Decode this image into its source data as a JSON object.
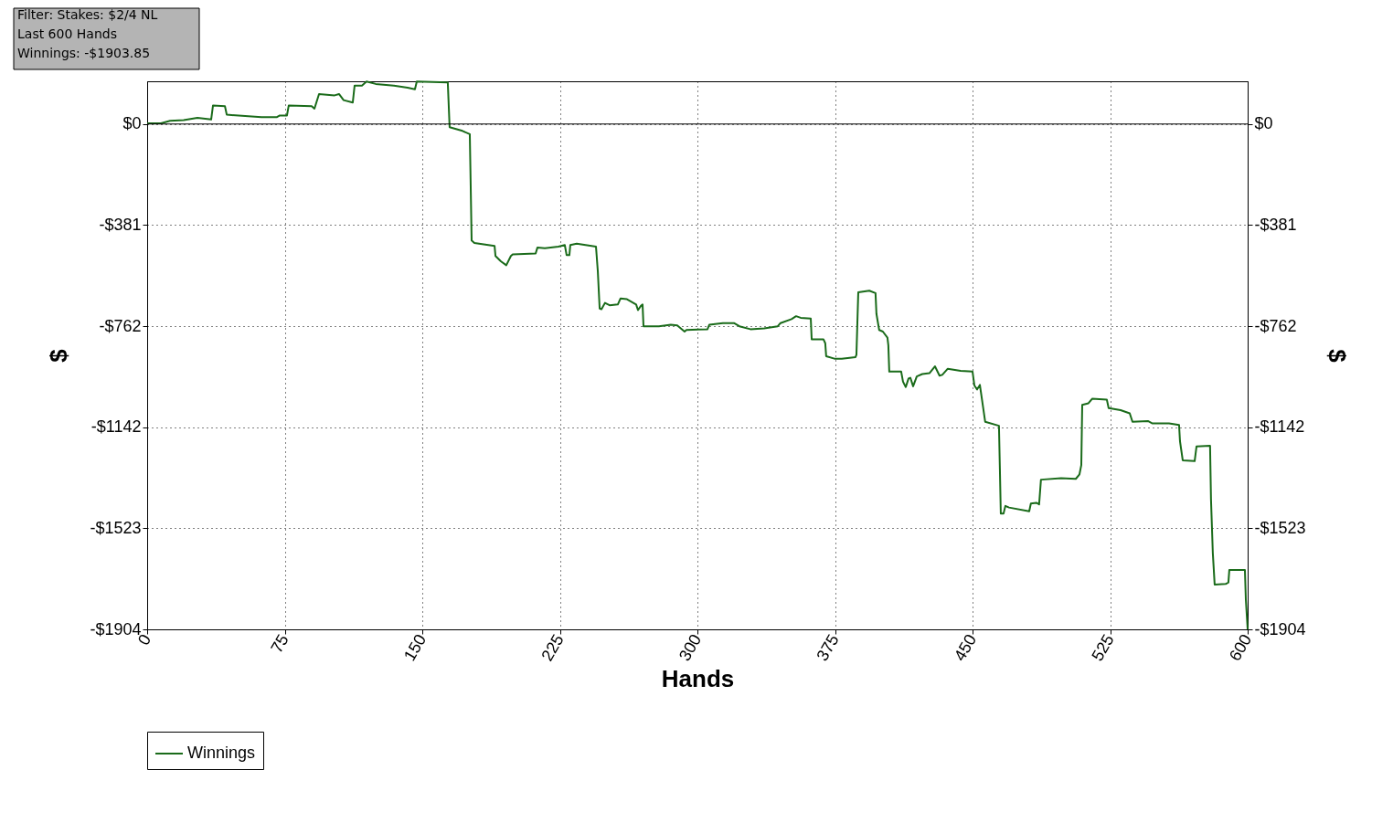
{
  "chart_data": {
    "type": "line",
    "xlabel": "Hands",
    "ylabel": "$",
    "y2label": "$",
    "annotations": [
      "Filter: Stakes: $2/4 NL",
      "Last 600 Hands",
      "Winnings: -$1903.85"
    ],
    "xlim": [
      0,
      600
    ],
    "xticks": [
      0,
      75,
      150,
      225,
      300,
      375,
      450,
      525,
      600
    ],
    "ylim": [
      -1904,
      161
    ],
    "yticks": [
      {
        "value": 0,
        "label": "$0"
      },
      {
        "value": -381,
        "label": "-$381"
      },
      {
        "value": -762,
        "label": "-$762"
      },
      {
        "value": -1142,
        "label": "-$1142"
      },
      {
        "value": -1523,
        "label": "-$1523"
      },
      {
        "value": -1904,
        "label": "-$1904"
      }
    ],
    "y2lim": [
      -1904,
      161
    ],
    "y2ticks": [
      {
        "value": 0,
        "label": "$0"
      },
      {
        "value": -381,
        "label": "-$381"
      },
      {
        "value": -762,
        "label": "-$762"
      },
      {
        "value": -1142,
        "label": "-$1142"
      },
      {
        "value": -1523,
        "label": "-$1523"
      },
      {
        "value": -1904,
        "label": "-$1904"
      }
    ],
    "grid": true,
    "legend": "bottom left",
    "line_style": "solid",
    "ref_lines": [
      {
        "axis": "y",
        "value": 0,
        "color": "#000000",
        "line_style": "solid"
      }
    ],
    "x": [
      0,
      7.5,
      12.5,
      19.9,
      27.4,
      34.9,
      35.9,
      42.4,
      43.4,
      62.3,
      70.8,
      72.3,
      76.2,
      77.2,
      89.7,
      91.2,
      93.7,
      102.2,
      104.6,
      107.1,
      112.1,
      113.1,
      117.1,
      119.6,
      124.6,
      134.5,
      142.0,
      146.0,
      147.0,
      163.9,
      164.9,
      171.9,
      175.9,
      176.4,
      176.9,
      178.4,
      189.4,
      189.9,
      192.8,
      195.8,
      198.3,
      199.3,
      211.8,
      212.8,
      216.8,
      224.2,
      227.7,
      228.7,
      230.2,
      230.7,
      234.2,
      244.7,
      245.7,
      246.7,
      247.7,
      249.6,
      252.1,
      256.6,
      258.1,
      261.6,
      266.6,
      267.6,
      269.1,
      270.1,
      270.6,
      279.0,
      285.5,
      289.0,
      293.0,
      294.0,
      305.5,
      306.5,
      313.9,
      319.9,
      322.9,
      328.9,
      336.4,
      343.8,
      345.3,
      351.3,
      353.8,
      356.3,
      361.8,
      362.3,
      368.7,
      369.7,
      370.2,
      374.7,
      378.7,
      386.2,
      386.7,
      387.7,
      393.7,
      397.1,
      397.6,
      399.1,
      401.1,
      403.6,
      404.1,
      404.6,
      411.1,
      412.1,
      413.6,
      415.1,
      416.1,
      417.6,
      419.6,
      422.6,
      426.5,
      429.5,
      432.0,
      433.5,
      436.5,
      443.5,
      450.0,
      451.0,
      452.5,
      454.0,
      454.9,
      456.9,
      464.4,
      464.9,
      465.4,
      466.9,
      467.9,
      469.9,
      480.9,
      481.8,
      484.8,
      486.3,
      487.3,
      498.3,
      506.3,
      508.3,
      509.3,
      509.8,
      513.2,
      515.2,
      523.2,
      524.2,
      530.7,
      535.7,
      537.2,
      545.6,
      548.1,
      557.1,
      562.6,
      563.1,
      564.6,
      571.1,
      572.1,
      579.5,
      580.0,
      581.0,
      582.0,
      588.0,
      589.5,
      590.0,
      598.5,
      599.0,
      600
    ],
    "series": [
      {
        "name": "Winnings",
        "color": "#1a6b1a",
        "values": [
          3,
          3,
          12,
          15,
          23,
          17,
          70,
          67,
          35,
          26,
          26,
          32,
          32,
          70,
          67,
          58,
          113,
          108,
          113,
          90,
          81,
          145,
          145,
          160,
          151,
          145,
          137,
          131,
          160,
          157,
          -12,
          -26,
          -38,
          -235,
          -439,
          -448,
          -459,
          -497,
          -517,
          -532,
          -497,
          -491,
          -488,
          -465,
          -468,
          -462,
          -456,
          -494,
          -494,
          -456,
          -451,
          -462,
          -555,
          -695,
          -698,
          -674,
          -683,
          -680,
          -657,
          -660,
          -680,
          -701,
          -686,
          -680,
          -762,
          -762,
          -756,
          -759,
          -782,
          -776,
          -773,
          -756,
          -750,
          -750,
          -762,
          -773,
          -770,
          -762,
          -750,
          -735,
          -724,
          -730,
          -733,
          -811,
          -811,
          -826,
          -875,
          -884,
          -884,
          -878,
          -869,
          -634,
          -628,
          -637,
          -715,
          -776,
          -782,
          -805,
          -834,
          -933,
          -933,
          -971,
          -991,
          -959,
          -956,
          -988,
          -951,
          -942,
          -939,
          -913,
          -948,
          -945,
          -922,
          -930,
          -933,
          -985,
          -1000,
          -983,
          -1026,
          -1122,
          -1137,
          -1297,
          -1468,
          -1468,
          -1439,
          -1445,
          -1459,
          -1430,
          -1427,
          -1433,
          -1340,
          -1334,
          -1337,
          -1320,
          -1285,
          -1058,
          -1052,
          -1035,
          -1038,
          -1070,
          -1078,
          -1090,
          -1122,
          -1119,
          -1128,
          -1128,
          -1134,
          -1195,
          -1267,
          -1270,
          -1215,
          -1212,
          -1413,
          -1616,
          -1735,
          -1733,
          -1727,
          -1680,
          -1680,
          -1791,
          -1904
        ]
      }
    ]
  }
}
